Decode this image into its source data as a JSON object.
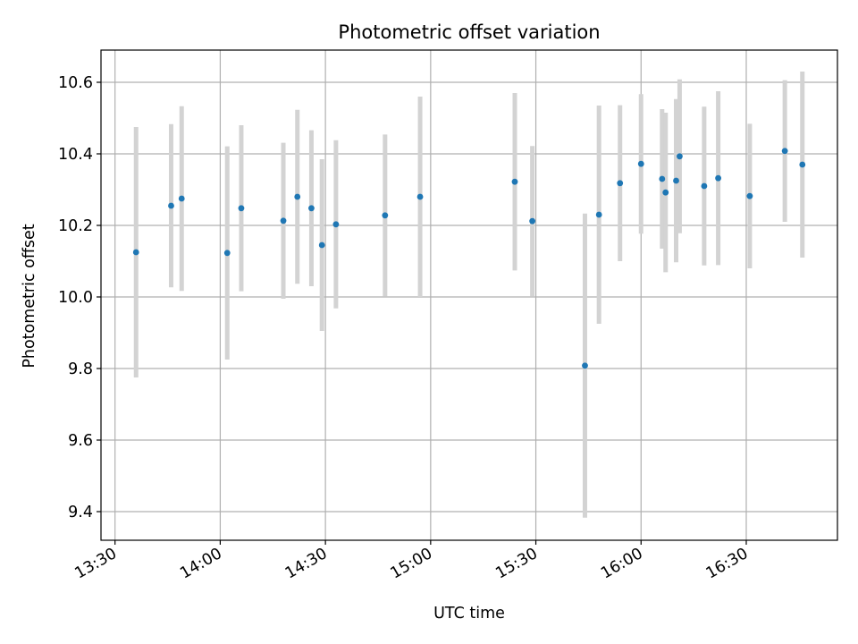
{
  "chart_data": {
    "type": "scatter",
    "title": "Photometric offset variation",
    "xlabel": "UTC time",
    "ylabel": "Photometric offset",
    "grid": true,
    "xlim": [
      "13:26",
      "16:56"
    ],
    "ylim": [
      9.32,
      10.69
    ],
    "x_ticks": [
      "13:30",
      "14:00",
      "14:30",
      "15:00",
      "15:30",
      "16:00",
      "16:30"
    ],
    "y_ticks": [
      9.4,
      9.6,
      9.8,
      10.0,
      10.2,
      10.4,
      10.6
    ],
    "y_tick_labels": [
      "9.4",
      "9.6",
      "9.8",
      "10.0",
      "10.2",
      "10.4",
      "10.6"
    ],
    "errorbar_color": "#d3d3d3",
    "marker_color": "#1f77b4",
    "points": [
      {
        "x": "13:36",
        "y": 10.125,
        "err": 0.35
      },
      {
        "x": "13:46",
        "y": 10.255,
        "err": 0.228
      },
      {
        "x": "13:49",
        "y": 10.275,
        "err": 0.258
      },
      {
        "x": "14:02",
        "y": 10.123,
        "err": 0.298
      },
      {
        "x": "14:06",
        "y": 10.248,
        "err": 0.232
      },
      {
        "x": "14:18",
        "y": 10.213,
        "err": 0.218
      },
      {
        "x": "14:22",
        "y": 10.28,
        "err": 0.243
      },
      {
        "x": "14:26",
        "y": 10.248,
        "err": 0.218
      },
      {
        "x": "14:29",
        "y": 10.145,
        "err": 0.24
      },
      {
        "x": "14:33",
        "y": 10.203,
        "err": 0.235
      },
      {
        "x": "14:47",
        "y": 10.228,
        "err": 0.226
      },
      {
        "x": "14:57",
        "y": 10.28,
        "err": 0.28
      },
      {
        "x": "15:24",
        "y": 10.322,
        "err": 0.248
      },
      {
        "x": "15:29",
        "y": 10.212,
        "err": 0.21
      },
      {
        "x": "15:44",
        "y": 9.808,
        "err": 0.425
      },
      {
        "x": "15:48",
        "y": 10.23,
        "err": 0.305
      },
      {
        "x": "15:54",
        "y": 10.318,
        "err": 0.218
      },
      {
        "x": "16:00",
        "y": 10.372,
        "err": 0.195
      },
      {
        "x": "16:06",
        "y": 10.33,
        "err": 0.195
      },
      {
        "x": "16:07",
        "y": 10.292,
        "err": 0.223
      },
      {
        "x": "16:10",
        "y": 10.325,
        "err": 0.228
      },
      {
        "x": "16:11",
        "y": 10.393,
        "err": 0.215
      },
      {
        "x": "16:18",
        "y": 10.31,
        "err": 0.222
      },
      {
        "x": "16:22",
        "y": 10.332,
        "err": 0.243
      },
      {
        "x": "16:31",
        "y": 10.282,
        "err": 0.202
      },
      {
        "x": "16:41",
        "y": 10.408,
        "err": 0.198
      },
      {
        "x": "16:46",
        "y": 10.37,
        "err": 0.26
      }
    ]
  }
}
